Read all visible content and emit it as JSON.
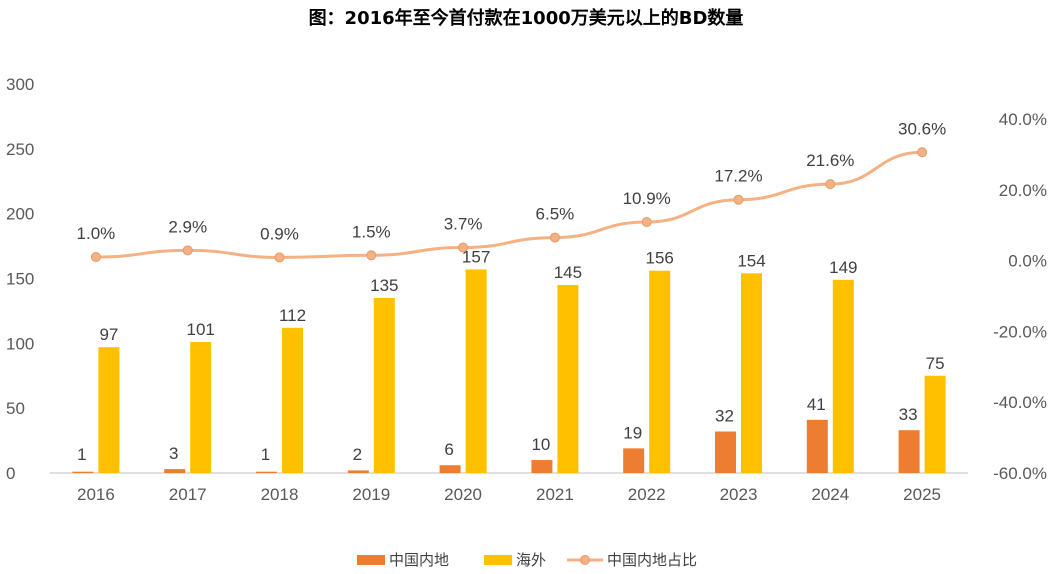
{
  "chart_data": {
    "type": "bar+line",
    "title": "图：2016年至今首付款在1000万美元以上的BD数量",
    "categories": [
      "2016",
      "2017",
      "2018",
      "2019",
      "2020",
      "2021",
      "2022",
      "2023",
      "2024",
      "2025"
    ],
    "series": [
      {
        "name": "中国内地",
        "type": "bar",
        "axis": "left",
        "color": "#ED7D31",
        "values": [
          1,
          3,
          1,
          2,
          6,
          10,
          19,
          32,
          41,
          33
        ],
        "labels": [
          "1",
          "3",
          "1",
          "2",
          "6",
          "10",
          "19",
          "32",
          "41",
          "33"
        ]
      },
      {
        "name": "海外",
        "type": "bar",
        "axis": "left",
        "color": "#FFC000",
        "values": [
          97,
          101,
          112,
          135,
          157,
          145,
          156,
          154,
          149,
          75
        ],
        "labels": [
          "97",
          "101",
          "112",
          "135",
          "157",
          "145",
          "156",
          "154",
          "149",
          "75"
        ]
      },
      {
        "name": "中国内地占比",
        "type": "line",
        "axis": "right",
        "color": "#F4B183",
        "values": [
          1.0,
          2.9,
          0.9,
          1.5,
          3.7,
          6.5,
          10.9,
          17.2,
          21.6,
          30.6
        ],
        "labels": [
          "1.0%",
          "2.9%",
          "0.9%",
          "1.5%",
          "3.7%",
          "6.5%",
          "10.9%",
          "17.2%",
          "21.6%",
          "30.6%"
        ]
      }
    ],
    "y_left": {
      "ylim": [
        0,
        300
      ],
      "ticks": [
        "0",
        "50",
        "100",
        "150",
        "200",
        "250",
        "300"
      ]
    },
    "y_right": {
      "ylim": [
        -60,
        40
      ],
      "ticks": [
        "-60.0%",
        "-40.0%",
        "-20.0%",
        "0.0%",
        "20.0%",
        "40.0%"
      ]
    },
    "grid": false,
    "legend": "bottom"
  }
}
